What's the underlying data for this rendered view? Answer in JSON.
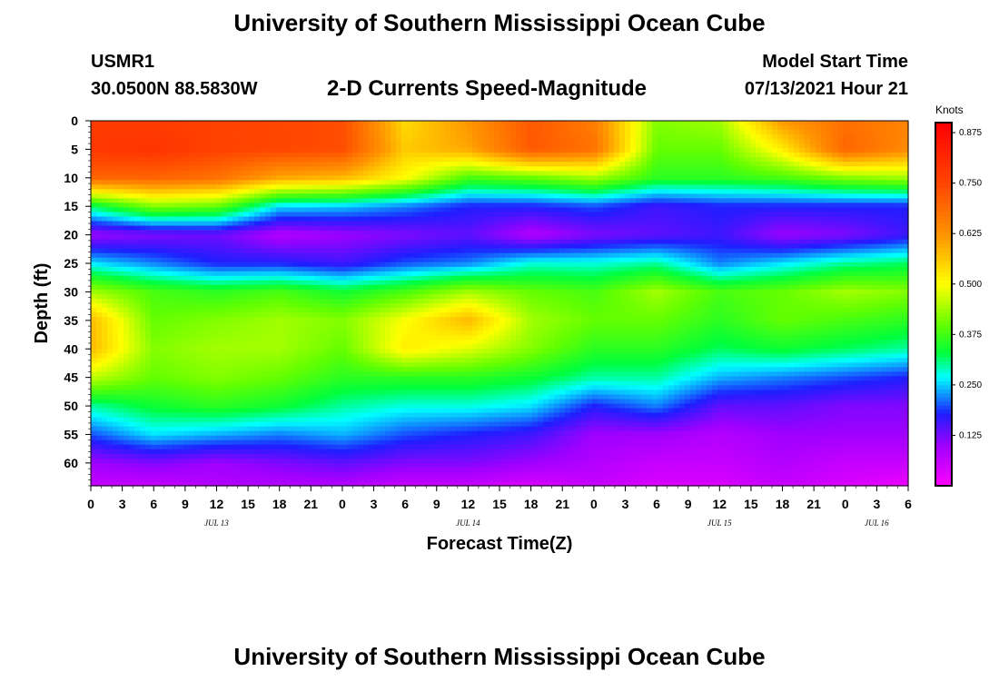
{
  "header": {
    "title": "University of Southern Mississippi Ocean Cube",
    "station": "USMR1",
    "coords": "30.0500N  88.5830W",
    "subtitle": "2-D Currents Speed-Magnitude",
    "start_label": "Model Start Time",
    "start_value": "07/13/2021 Hour 21"
  },
  "footer": {
    "title": "University of Southern Mississippi Ocean Cube"
  },
  "chart_data": {
    "type": "heatmap",
    "title": "2-D Currents Speed-Magnitude",
    "xlabel": "Forecast Time(Z)",
    "ylabel": "Depth (ft)",
    "xlim": [
      0,
      78
    ],
    "ylim": [
      0,
      64
    ],
    "x_ticks": [
      "0",
      "3",
      "6",
      "9",
      "12",
      "15",
      "18",
      "21",
      "0",
      "3",
      "6",
      "9",
      "12",
      "15",
      "18",
      "21",
      "0",
      "3",
      "6",
      "9",
      "12",
      "15",
      "18",
      "21",
      "0",
      "3",
      "6"
    ],
    "y_ticks": [
      "0",
      "5",
      "10",
      "15",
      "20",
      "25",
      "30",
      "35",
      "40",
      "45",
      "50",
      "55",
      "60"
    ],
    "date_labels": [
      {
        "label": "JUL 13",
        "hour": 12
      },
      {
        "label": "JUL 14",
        "hour": 36
      },
      {
        "label": "JUL 15",
        "hour": 60
      },
      {
        "label": "JUL 16",
        "hour": 75
      }
    ],
    "colorbar": {
      "units": "Knots",
      "min": 0.0,
      "max": 0.9,
      "ticks": [
        "0.125",
        "0.250",
        "0.375",
        "0.500",
        "0.625",
        "0.750",
        "0.875"
      ],
      "tick_values": [
        0.125,
        0.25,
        0.375,
        0.5,
        0.625,
        0.75,
        0.875
      ]
    },
    "hours": [
      0,
      6,
      12,
      18,
      24,
      30,
      36,
      42,
      48,
      54,
      60,
      66,
      72,
      78
    ],
    "depths": [
      0,
      5,
      10,
      15,
      20,
      25,
      30,
      35,
      40,
      45,
      50,
      55,
      60,
      64
    ],
    "speed": [
      [
        0.77,
        0.77,
        0.76,
        0.75,
        0.74,
        0.54,
        0.62,
        0.72,
        0.66,
        0.42,
        0.44,
        0.62,
        0.68,
        0.65
      ],
      [
        0.78,
        0.79,
        0.76,
        0.75,
        0.74,
        0.56,
        0.6,
        0.72,
        0.68,
        0.4,
        0.4,
        0.52,
        0.7,
        0.64
      ],
      [
        0.7,
        0.7,
        0.68,
        0.6,
        0.58,
        0.5,
        0.38,
        0.4,
        0.44,
        0.36,
        0.36,
        0.38,
        0.42,
        0.44
      ],
      [
        0.32,
        0.42,
        0.4,
        0.26,
        0.25,
        0.22,
        0.18,
        0.18,
        0.2,
        0.16,
        0.18,
        0.18,
        0.18,
        0.18
      ],
      [
        0.1,
        0.12,
        0.13,
        0.08,
        0.1,
        0.12,
        0.14,
        0.08,
        0.12,
        0.14,
        0.16,
        0.1,
        0.12,
        0.16
      ],
      [
        0.26,
        0.22,
        0.18,
        0.18,
        0.16,
        0.2,
        0.22,
        0.28,
        0.28,
        0.3,
        0.22,
        0.26,
        0.3,
        0.32
      ],
      [
        0.44,
        0.38,
        0.36,
        0.38,
        0.34,
        0.38,
        0.44,
        0.4,
        0.38,
        0.44,
        0.38,
        0.4,
        0.44,
        0.42
      ],
      [
        0.58,
        0.4,
        0.42,
        0.44,
        0.42,
        0.5,
        0.58,
        0.44,
        0.4,
        0.4,
        0.36,
        0.4,
        0.38,
        0.36
      ],
      [
        0.58,
        0.42,
        0.44,
        0.44,
        0.4,
        0.52,
        0.48,
        0.42,
        0.36,
        0.36,
        0.32,
        0.34,
        0.32,
        0.3
      ],
      [
        0.46,
        0.4,
        0.42,
        0.4,
        0.36,
        0.36,
        0.36,
        0.34,
        0.3,
        0.3,
        0.24,
        0.22,
        0.2,
        0.18
      ],
      [
        0.3,
        0.34,
        0.36,
        0.34,
        0.3,
        0.28,
        0.28,
        0.26,
        0.18,
        0.22,
        0.14,
        0.14,
        0.12,
        0.12
      ],
      [
        0.2,
        0.26,
        0.24,
        0.22,
        0.24,
        0.2,
        0.18,
        0.16,
        0.1,
        0.1,
        0.08,
        0.1,
        0.1,
        0.1
      ],
      [
        0.1,
        0.12,
        0.1,
        0.12,
        0.14,
        0.12,
        0.12,
        0.1,
        0.08,
        0.06,
        0.06,
        0.08,
        0.06,
        0.06
      ],
      [
        0.06,
        0.06,
        0.08,
        0.08,
        0.08,
        0.06,
        0.06,
        0.04,
        0.06,
        0.04,
        0.04,
        0.06,
        0.04,
        0.02
      ]
    ]
  }
}
